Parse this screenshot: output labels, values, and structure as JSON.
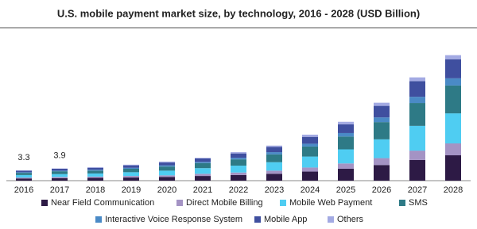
{
  "chart_data": {
    "type": "stacked-bar",
    "title": "U.S. mobile payment market size, by technology, 2016 - 2028 (USD Billion)",
    "categories": [
      "2016",
      "2017",
      "2018",
      "2019",
      "2020",
      "2021",
      "2022",
      "2023",
      "2024",
      "2025",
      "2026",
      "2027",
      "2028"
    ],
    "total_labels": [
      3.3,
      3.9,
      null,
      null,
      null,
      null,
      null,
      null,
      null,
      null,
      null,
      null,
      null
    ],
    "series": [
      {
        "name": "Near Field Communication",
        "color": "#2d1a45",
        "values": [
          0.7,
          0.8,
          0.9,
          1.0,
          1.2,
          1.5,
          1.8,
          2.2,
          2.9,
          3.8,
          5.0,
          6.6,
          8.1
        ]
      },
      {
        "name": "Direct Mobile Billing",
        "color": "#a493c4",
        "values": [
          0.3,
          0.4,
          0.4,
          0.5,
          0.5,
          0.7,
          0.8,
          1.0,
          1.3,
          1.7,
          2.2,
          3.0,
          3.8
        ]
      },
      {
        "name": "Mobile Web Payment",
        "color": "#4fcdf2",
        "values": [
          0.8,
          0.9,
          1.0,
          1.2,
          1.5,
          1.8,
          2.2,
          2.7,
          3.5,
          4.5,
          6.0,
          7.9,
          9.6
        ]
      },
      {
        "name": "SMS",
        "color": "#2e7a86",
        "values": [
          0.7,
          0.9,
          0.9,
          1.1,
          1.3,
          1.6,
          2.0,
          2.5,
          3.2,
          4.1,
          5.5,
          7.3,
          8.9
        ]
      },
      {
        "name": "Interactive Voice Response System",
        "color": "#4a8ac6",
        "values": [
          0.2,
          0.2,
          0.3,
          0.3,
          0.4,
          0.4,
          0.5,
          0.7,
          0.9,
          1.1,
          1.5,
          2.0,
          2.3
        ]
      },
      {
        "name": "Mobile App",
        "color": "#3f4f9f",
        "values": [
          0.5,
          0.6,
          0.6,
          0.8,
          0.9,
          1.1,
          1.4,
          1.7,
          2.2,
          2.8,
          3.7,
          5.0,
          6.1
        ]
      },
      {
        "name": "Others",
        "color": "#a3aae3",
        "values": [
          0.1,
          0.1,
          0.2,
          0.2,
          0.3,
          0.2,
          0.4,
          0.4,
          0.7,
          0.8,
          1.0,
          1.2,
          1.3
        ]
      }
    ]
  }
}
